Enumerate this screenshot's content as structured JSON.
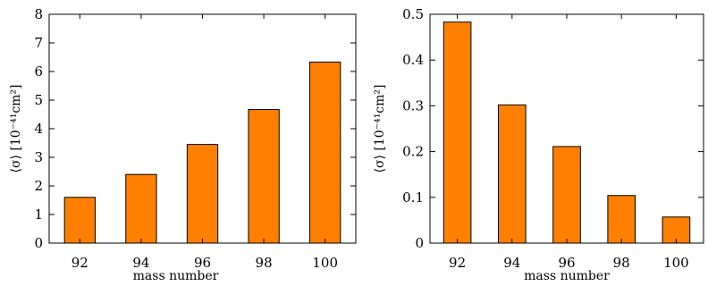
{
  "chart_data": [
    {
      "type": "bar",
      "categories": [
        "92",
        "94",
        "96",
        "98",
        "100"
      ],
      "values": [
        1.6,
        2.4,
        3.45,
        4.67,
        6.33
      ],
      "title": "",
      "xlabel": "mass number",
      "ylabel": "⟨σ⟩ [10⁻⁴¹cm²]",
      "ylim": [
        0,
        8
      ],
      "yticks": [
        "0",
        "1",
        "2",
        "3",
        "4",
        "5",
        "6",
        "7",
        "8"
      ],
      "bar_color": "#ff8000",
      "grid": false
    },
    {
      "type": "bar",
      "categories": [
        "92",
        "94",
        "96",
        "98",
        "100"
      ],
      "values": [
        0.483,
        0.302,
        0.211,
        0.104,
        0.057
      ],
      "title": "",
      "xlabel": "mass number",
      "ylabel": "⟨σ⟩ [10⁻⁴¹cm²]",
      "ylim": [
        0,
        0.5
      ],
      "yticks": [
        "0",
        "0.1",
        "0.2",
        "0.3",
        "0.4",
        "0.5"
      ],
      "bar_color": "#ff8000",
      "grid": false
    }
  ]
}
